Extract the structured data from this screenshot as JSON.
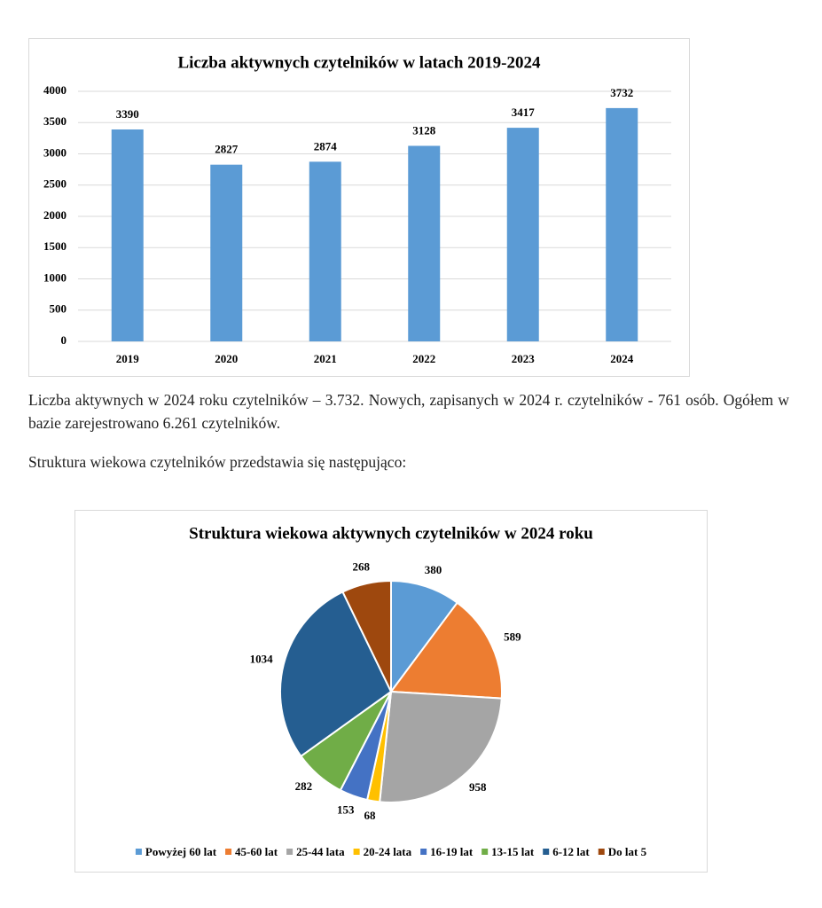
{
  "chart_data": [
    {
      "type": "bar",
      "title": "Liczba aktywnych czytelników w latach 2019-2024",
      "categories": [
        "2019",
        "2020",
        "2021",
        "2022",
        "2023",
        "2024"
      ],
      "values": [
        3390,
        2827,
        2874,
        3128,
        3417,
        3732
      ],
      "color": "#5b9bd5",
      "ylim": [
        0,
        4000
      ],
      "yticks": [
        0,
        500,
        1000,
        1500,
        2000,
        2500,
        3000,
        3500,
        4000
      ],
      "grid": true
    },
    {
      "type": "pie",
      "title": "Struktura wiekowa aktywnych czytelników w 2024 roku",
      "categories": [
        "Powyżej 60 lat",
        "45-60 lat",
        "25-44 lata",
        "20-24 lata",
        "16-19 lat",
        "13-15 lat",
        "6-12 lat",
        "Do lat 5"
      ],
      "values": [
        380,
        589,
        958,
        68,
        153,
        282,
        1034,
        268
      ],
      "colors": [
        "#5b9bd5",
        "#ed7d31",
        "#a5a5a5",
        "#ffc000",
        "#4472c4",
        "#70ad47",
        "#255e91",
        "#9e480e"
      ],
      "legend": "bottom"
    }
  ],
  "paragraphs": [
    "Liczba aktywnych w 2024 roku czytelników – 3.732. Nowych, zapisanych w 2024 r. czytelników - 761 osób. Ogółem w bazie zarejestrowano 6.261 czytelników.",
    "Struktura wiekowa czytelników przedstawia się następująco:"
  ]
}
